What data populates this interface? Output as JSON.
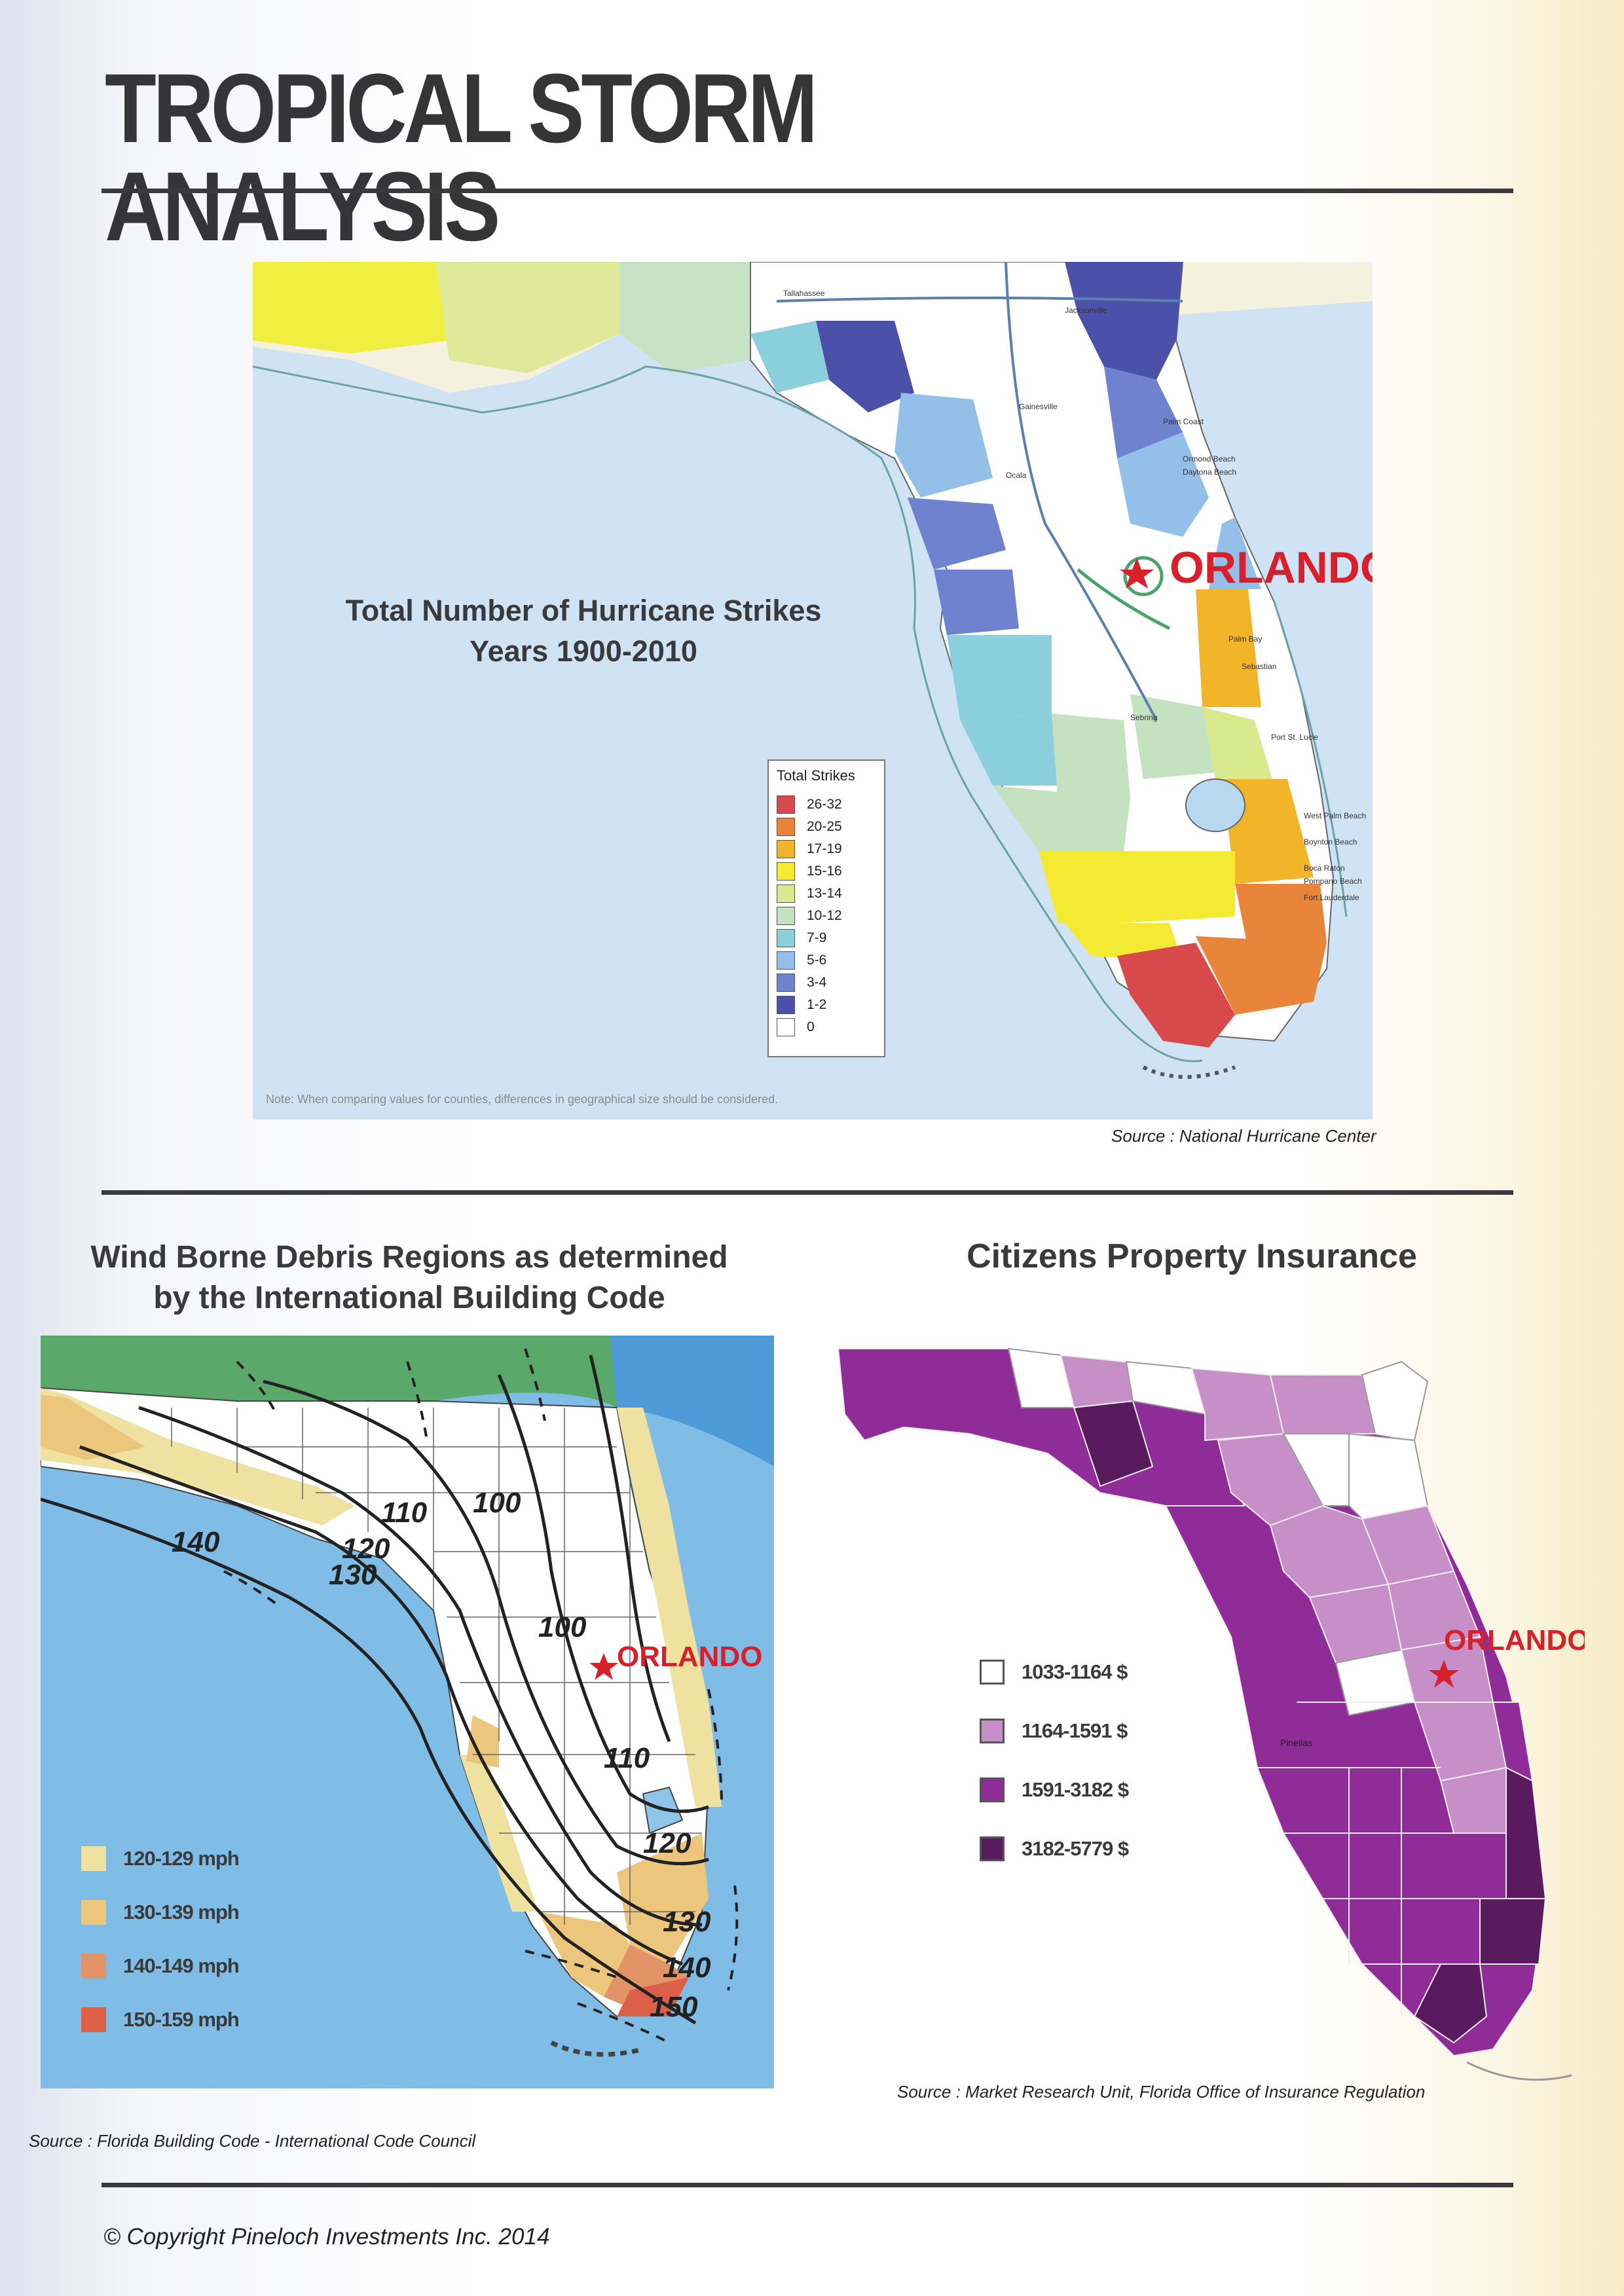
{
  "header": {
    "title": "TROPICAL STORM ANALYSIS"
  },
  "map1": {
    "title_line1": "Total Number of Hurricane Strikes",
    "title_line2": "Years 1900-2010",
    "city_label": "ORLANDO",
    "legend_title": "Total Strikes",
    "legend": [
      {
        "label": "26-32",
        "color": "#d7494b"
      },
      {
        "label": "20-25",
        "color": "#e9853a"
      },
      {
        "label": "17-19",
        "color": "#f2b52a"
      },
      {
        "label": "15-16",
        "color": "#f4ea34"
      },
      {
        "label": "13-14",
        "color": "#d9e98e"
      },
      {
        "label": "10-12",
        "color": "#c5e2c0"
      },
      {
        "label": "7-9",
        "color": "#8ccfdc"
      },
      {
        "label": "5-6",
        "color": "#93bfe8"
      },
      {
        "label": "3-4",
        "color": "#6f82d0"
      },
      {
        "label": "1-2",
        "color": "#4b51a8"
      },
      {
        "label": "0",
        "color": "#ffffff"
      }
    ],
    "place_labels": [
      "Jacksonville",
      "Gainesville",
      "Ocala",
      "Palm Coast",
      "Ormond Beach",
      "Daytona Beach",
      "Palm Bay",
      "Sebastian",
      "Port St. Lucie",
      "Sebring",
      "West Palm Beach",
      "Boynton Beach",
      "Boca Raton",
      "Pompano Beach",
      "Fort Lauderdale",
      "Tallahassee"
    ],
    "note": "Note: When comparing values for counties, differences in geographical size should be considered.",
    "source": "Source : National Hurricane Center"
  },
  "map2": {
    "title_line1": "Wind Borne Debris Regions as determined",
    "title_line2": "by the International Building Code",
    "city_label": "ORLANDO",
    "contours": [
      "100",
      "110",
      "120",
      "130",
      "140",
      "100",
      "110",
      "120",
      "130",
      "140",
      "150"
    ],
    "legend": [
      {
        "label": "120-129 mph",
        "color": "#efe2a0"
      },
      {
        "label": "130-139 mph",
        "color": "#ecc67c"
      },
      {
        "label": "140-149 mph",
        "color": "#e29468"
      },
      {
        "label": "150-159 mph",
        "color": "#dc6048"
      }
    ],
    "source": "Source : Florida Building Code - International Code Council"
  },
  "map3": {
    "title": "Citizens Property Insurance",
    "city_label": "ORLANDO",
    "place_label": "Pinellas",
    "legend": [
      {
        "label": "1033-1164 $",
        "color": "#ffffff"
      },
      {
        "label": "1164-1591 $",
        "color": "#c68fc8"
      },
      {
        "label": "1591-3182 $",
        "color": "#8f2c97"
      },
      {
        "label": "3182-5779 $",
        "color": "#5a1a5e"
      }
    ],
    "source": "Source : Market Research Unit, Florida Office of Insurance Regulation"
  },
  "footer": {
    "copyright": "© Copyright Pineloch Investments Inc. 2014"
  }
}
